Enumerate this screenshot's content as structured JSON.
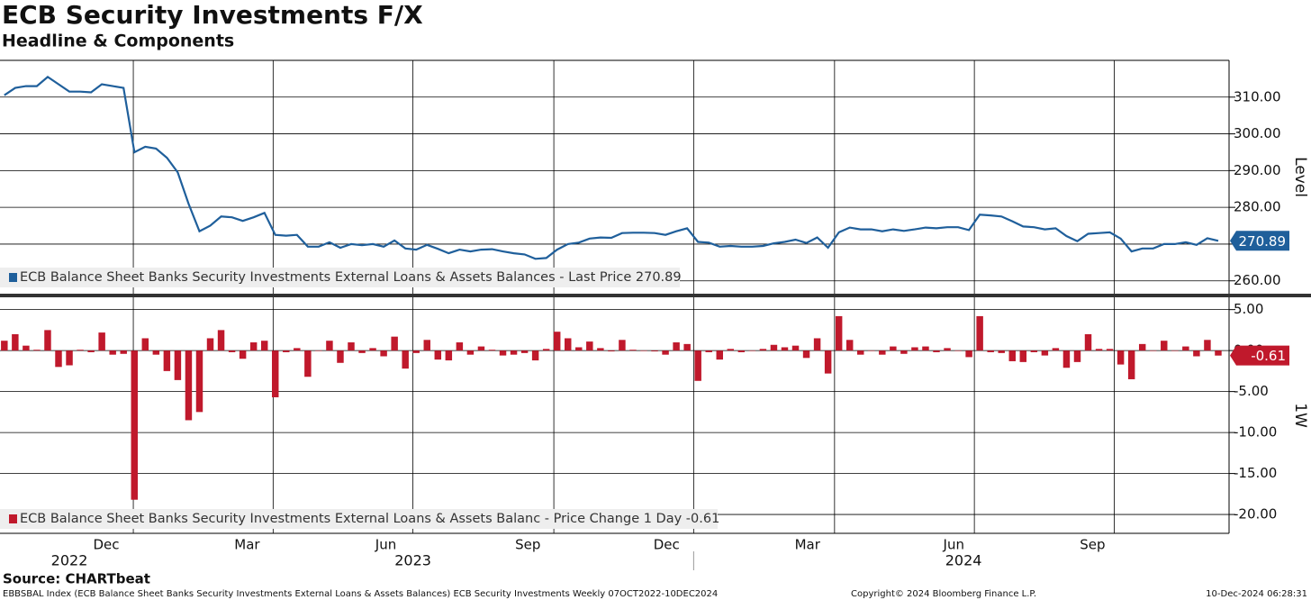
{
  "header": {
    "title": "ECB Security Investments F/X",
    "subtitle": "Headline & Components"
  },
  "footer": {
    "source": "Source: CHARTbeat",
    "description": "EBBSBAL Index (ECB Balance Sheet Banks Security Investments External Loans & Assets Balances) ECB Security Investments  Weekly 07OCT2022-10DEC2024",
    "copyright": "Copyright© 2024 Bloomberg Finance L.P.",
    "timestamp": "10-Dec-2024 06:28:31"
  },
  "chart_data": [
    {
      "type": "line",
      "axis_label": "Level",
      "legend": "ECB Balance Sheet Banks Security Investments External Loans & Assets Balances - Last Price 270.89",
      "color": "#1f5f9b",
      "last_label": "270.89",
      "xlim": [
        -0.4,
        113
      ],
      "xticks": [
        11.9,
        24.8,
        37.7,
        50.7,
        63.6,
        76.6,
        89.5,
        102.4
      ],
      "ylim": [
        256.5,
        320
      ],
      "yticks": [
        {
          "value": 260,
          "label": "260.00"
        },
        {
          "value": 270,
          "label": "270.00"
        },
        {
          "value": 280,
          "label": "280.00"
        },
        {
          "value": 290,
          "label": "290.00"
        },
        {
          "value": 300,
          "label": "300.00"
        },
        {
          "value": 310,
          "label": "310.00"
        }
      ],
      "values": [
        310.5,
        312.5,
        313,
        313,
        315.5,
        313.5,
        311.5,
        311.5,
        311.3,
        313.5,
        313,
        312.5,
        295,
        296.5,
        296,
        293.5,
        289.5,
        281,
        273.5,
        275,
        277.5,
        277.3,
        276.3,
        277.3,
        278.5,
        272.5,
        272.3,
        272.5,
        269.3,
        269.3,
        270.5,
        269,
        270,
        269.7,
        270,
        269.3,
        271,
        268.8,
        268.5,
        269.8,
        268.7,
        267.5,
        268.5,
        268,
        268.5,
        268.6,
        268,
        267.5,
        267.2,
        266,
        266.2,
        268.5,
        270,
        270.4,
        271.5,
        271.8,
        271.7,
        273,
        273.1,
        273.1,
        273,
        272.5,
        273.5,
        274.3,
        270.6,
        270.4,
        269.3,
        269.5,
        269.3,
        269.3,
        269.5,
        270.2,
        270.6,
        271.2,
        270.3,
        271.8,
        269,
        273.2,
        274.5,
        274,
        274,
        273.5,
        274,
        273.6,
        274,
        274.5,
        274.3,
        274.6,
        274.6,
        273.8,
        278,
        277.8,
        277.5,
        276.2,
        274.8,
        274.6,
        274,
        274.3,
        272.2,
        270.8,
        272.8,
        273,
        273.2,
        271.5,
        268,
        268.8,
        268.8,
        270,
        270,
        270.5,
        269.8,
        271.6,
        270.89
      ]
    },
    {
      "type": "bar",
      "axis_label": "1W",
      "legend": "ECB Balance Sheet Banks Security Investments External Loans & Assets Balanc - Price Change 1 Day -0.61",
      "color": "#c0192c",
      "last_label": "-0.61",
      "xlim": [
        -0.4,
        113
      ],
      "xticks": [
        11.9,
        24.8,
        37.7,
        50.7,
        63.6,
        76.6,
        89.5,
        102.4
      ],
      "month_labels": [
        {
          "value": 9.4,
          "label": "Dec"
        },
        {
          "value": 22.4,
          "label": "Mar"
        },
        {
          "value": 35.2,
          "label": "Jun"
        },
        {
          "value": 48.3,
          "label": "Sep"
        },
        {
          "value": 61.1,
          "label": "Dec"
        },
        {
          "value": 74.1,
          "label": "Mar"
        },
        {
          "value": 87.6,
          "label": "Jun"
        },
        {
          "value": 100.4,
          "label": "Sep"
        }
      ],
      "year_labels": [
        {
          "value": 6.0,
          "label": "2022"
        },
        {
          "value": 37.7,
          "label": "2023"
        },
        {
          "value": 88.5,
          "label": "2024"
        }
      ],
      "ylim": [
        -22.3,
        6.5
      ],
      "yticks": [
        {
          "value": 5,
          "label": "5.00"
        },
        {
          "value": 0,
          "label": "0.00"
        },
        {
          "value": -5,
          "label": "-5.00"
        },
        {
          "value": -10,
          "label": "-10.00"
        },
        {
          "value": -15,
          "label": "-15.00"
        },
        {
          "value": -20,
          "label": "-20.00"
        }
      ],
      "values": [
        1.2,
        2.0,
        0.6,
        0.1,
        2.5,
        -2.0,
        -1.8,
        0.1,
        -0.2,
        2.2,
        -0.5,
        -0.4,
        -18.2,
        1.5,
        -0.5,
        -2.5,
        -3.6,
        -8.5,
        -7.5,
        1.5,
        2.5,
        -0.2,
        -1.0,
        1.0,
        1.2,
        -5.7,
        -0.2,
        0.3,
        -3.2,
        0.0,
        1.2,
        -1.5,
        1.0,
        -0.3,
        0.3,
        -0.7,
        1.7,
        -2.2,
        -0.3,
        1.3,
        -1.1,
        -1.2,
        1.0,
        -0.5,
        0.5,
        0.1,
        -0.6,
        -0.5,
        -0.3,
        -1.2,
        0.2,
        2.3,
        1.5,
        0.4,
        1.1,
        0.3,
        -0.1,
        1.3,
        0.1,
        0.0,
        -0.1,
        -0.5,
        1.0,
        0.8,
        -3.7,
        -0.2,
        -1.1,
        0.2,
        -0.2,
        0.0,
        0.2,
        0.7,
        0.4,
        0.6,
        -0.9,
        1.5,
        -2.8,
        4.2,
        1.3,
        -0.5,
        0.0,
        -0.5,
        0.5,
        -0.4,
        0.4,
        0.5,
        -0.2,
        0.3,
        0.0,
        -0.8,
        4.2,
        -0.2,
        -0.3,
        -1.3,
        -1.4,
        -0.2,
        -0.6,
        0.3,
        -2.1,
        -1.4,
        2.0,
        0.2,
        0.2,
        -1.7,
        -3.5,
        0.8,
        0.0,
        1.2,
        0.0,
        0.5,
        -0.7,
        1.3,
        -0.61
      ]
    }
  ]
}
